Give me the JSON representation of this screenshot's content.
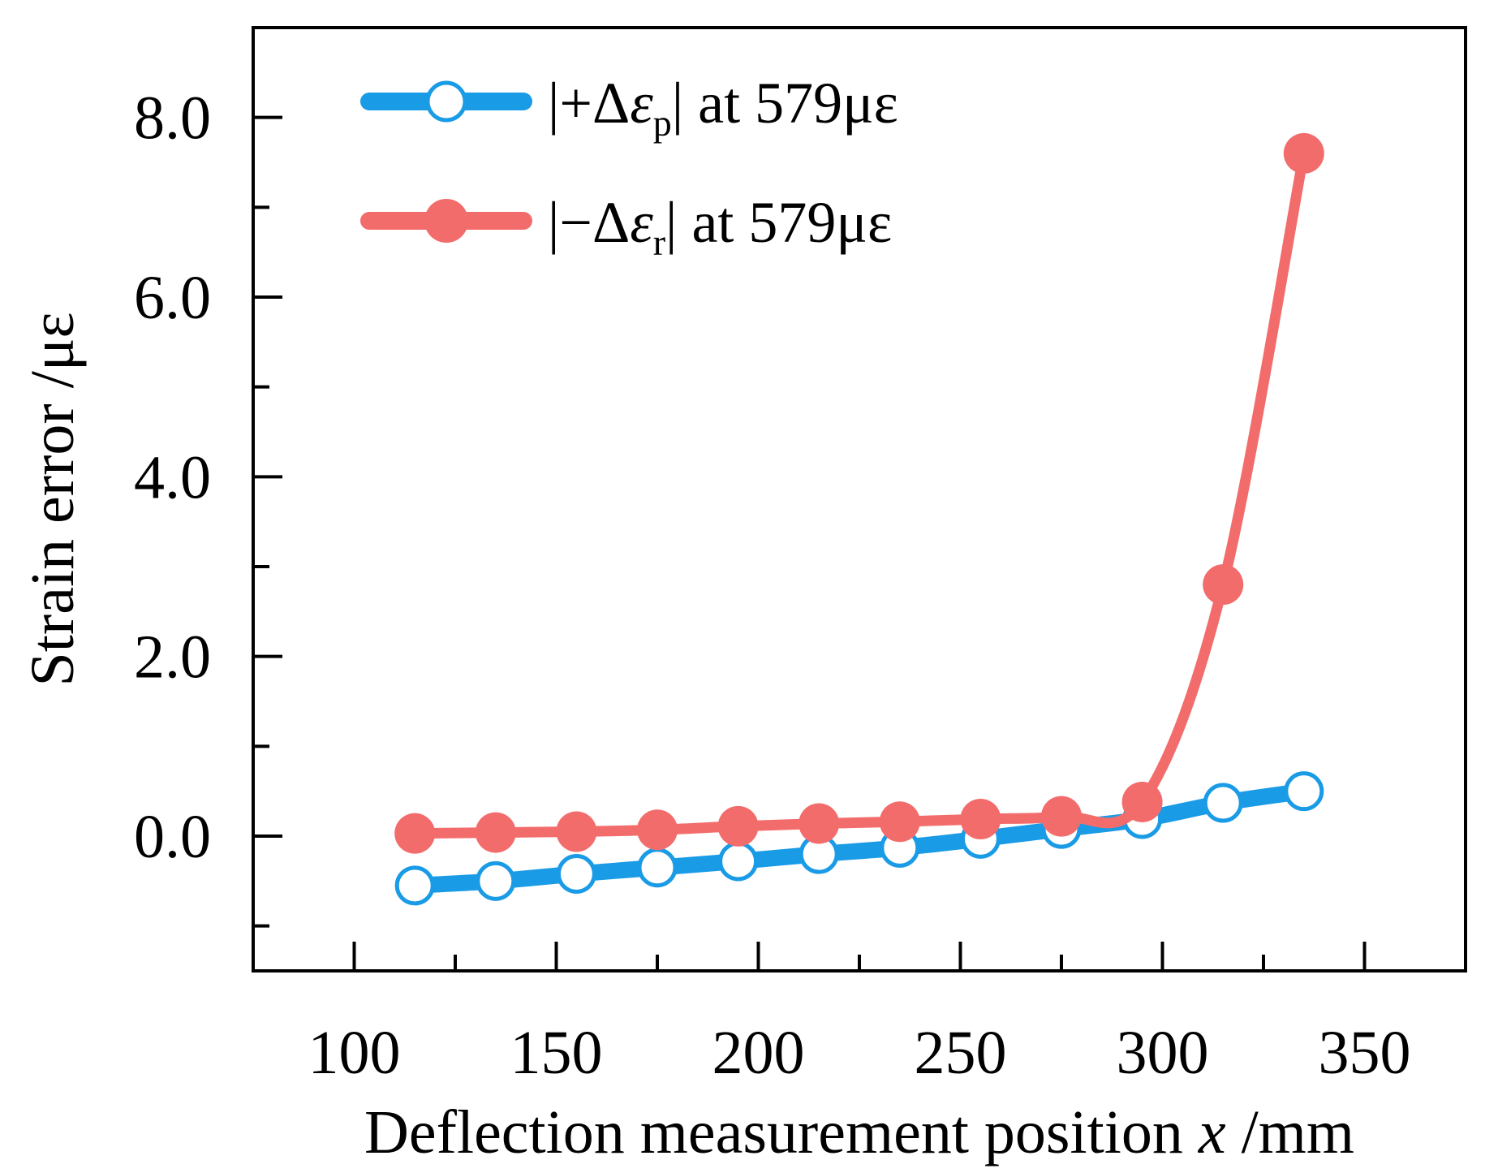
{
  "chart_data": {
    "type": "line",
    "title": "",
    "xlabel_prefix": "Deflection measurement position ",
    "xlabel_var": "x",
    "xlabel_suffix": " /mm",
    "ylabel": "Strain error /με",
    "xlim": [
      75,
      375
    ],
    "ylim": [
      -1.5,
      9.0
    ],
    "x_ticks": [
      100,
      150,
      200,
      250,
      300,
      350
    ],
    "x_tick_labels": [
      "100",
      "150",
      "200",
      "250",
      "300",
      "350"
    ],
    "x_minor_ticks": [
      125,
      175,
      225,
      275,
      325,
      375
    ],
    "y_ticks": [
      0.0,
      2.0,
      4.0,
      6.0,
      8.0
    ],
    "y_tick_labels": [
      "0.0",
      "2.0",
      "4.0",
      "6.0",
      "8.0"
    ],
    "y_minor_ticks": [
      -1.0,
      1.0,
      3.0,
      5.0,
      7.0
    ],
    "legend_position": "top-left",
    "series": [
      {
        "name": "|+Δεp| at 579με",
        "legend_prefix": "|+Δ",
        "legend_symbol": "ε",
        "legend_sub": "p",
        "legend_suffix": "| at 579με",
        "color": "#1a9be6",
        "marker": "open-circle",
        "x": [
          115,
          135,
          155,
          175,
          195,
          215,
          235,
          255,
          275,
          295,
          315,
          335
        ],
        "values": [
          -0.55,
          -0.5,
          -0.42,
          -0.35,
          -0.28,
          -0.2,
          -0.13,
          -0.03,
          0.08,
          0.19,
          0.37,
          0.5
        ]
      },
      {
        "name": "|−Δεr| at 579με",
        "legend_prefix": "|−Δ",
        "legend_symbol": "ε",
        "legend_sub": "r",
        "legend_suffix": "| at 579με",
        "color": "#f36c6c",
        "marker": "filled-circle",
        "x": [
          115,
          135,
          155,
          175,
          195,
          215,
          235,
          255,
          275,
          295,
          315,
          335
        ],
        "values": [
          0.03,
          0.04,
          0.05,
          0.07,
          0.11,
          0.14,
          0.16,
          0.19,
          0.22,
          0.38,
          2.8,
          7.6
        ]
      }
    ]
  }
}
